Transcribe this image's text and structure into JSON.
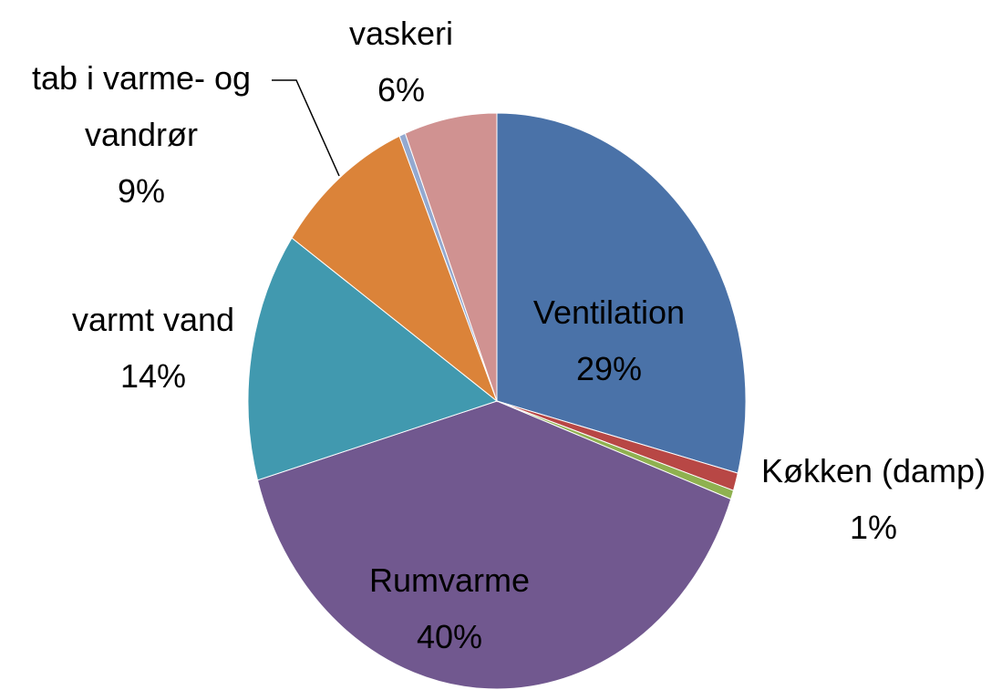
{
  "chart_data": {
    "type": "pie",
    "categories": [
      "Ventilation",
      "Køkken (damp)",
      null,
      "Rumvarme",
      "varmt vand",
      "tab i varme- og vandrør",
      null,
      "vaskeri"
    ],
    "values": [
      29,
      1,
      0.5,
      40,
      14,
      9,
      0.4,
      6
    ],
    "value_labels": [
      "29%",
      "1%",
      null,
      "40%",
      "14%",
      "9%",
      null,
      "6%"
    ],
    "colors": [
      "#4a72a8",
      "#b84745",
      "#8fb150",
      "#71588f",
      "#4199af",
      "#db8339",
      "#93a9d0",
      "#d09291"
    ]
  }
}
